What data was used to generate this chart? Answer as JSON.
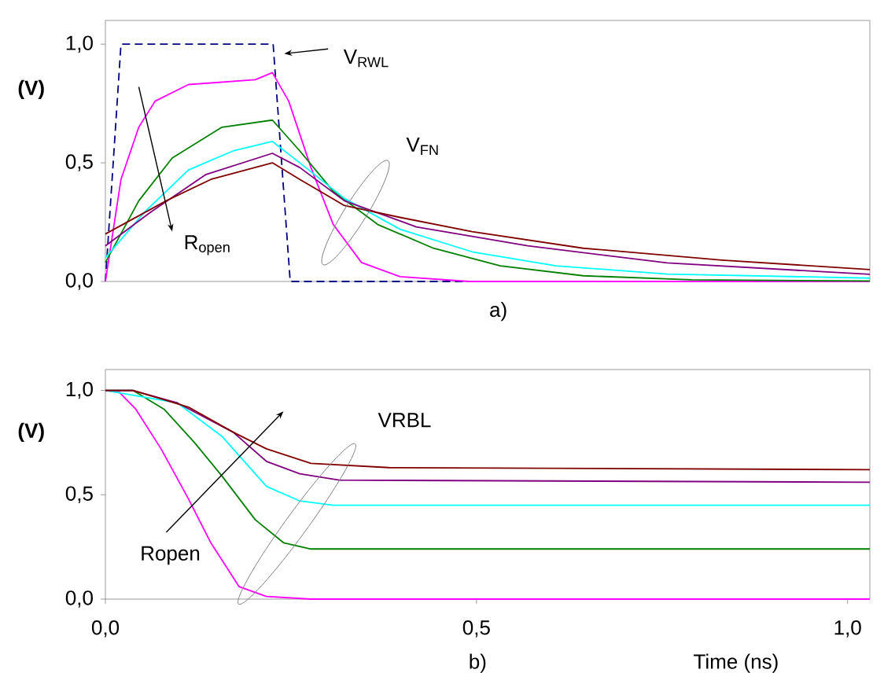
{
  "chart_data": [
    {
      "type": "line",
      "ylabel": "(V)",
      "xlim": [
        0,
        1.03
      ],
      "ylim": [
        0,
        1.1
      ],
      "yticks": [
        {
          "value": 0,
          "label": "0,0"
        },
        {
          "value": 0.5,
          "label": "0,5"
        },
        {
          "value": 1,
          "label": "1,0"
        }
      ],
      "tick_labels": "y",
      "annotations": [
        "V$_{RWL}$",
        "V$_{FN}$",
        "R$_{open}$",
        "a)"
      ],
      "series": [
        {
          "color": "#000080",
          "line_style": "dashed",
          "x": [
            0,
            0.021,
            0.226,
            0.249,
            1.03
          ],
          "values": [
            0,
            1,
            1,
            0,
            0
          ]
        },
        {
          "color": "#ff00ff",
          "x": [
            0,
            0.021,
            0.045,
            0.067,
            0.112,
            0.202,
            0.225,
            0.247,
            0.277,
            0.307,
            0.345,
            0.397,
            0.49,
            1.03
          ],
          "values": [
            0,
            0.43,
            0.65,
            0.76,
            0.83,
            0.85,
            0.88,
            0.76,
            0.48,
            0.24,
            0.08,
            0.02,
            0,
            0
          ]
        },
        {
          "color": "#008000",
          "x": [
            0,
            0.045,
            0.09,
            0.157,
            0.225,
            0.262,
            0.307,
            0.367,
            0.442,
            0.532,
            0.644,
            0.79,
            1.03
          ],
          "values": [
            0.08,
            0.34,
            0.52,
            0.65,
            0.68,
            0.55,
            0.38,
            0.24,
            0.14,
            0.066,
            0.024,
            0.007,
            0.002
          ]
        },
        {
          "color": "#00ffff",
          "x": [
            0,
            0.052,
            0.112,
            0.172,
            0.225,
            0.262,
            0.322,
            0.397,
            0.494,
            0.607,
            0.757,
            1.03
          ],
          "values": [
            0.1,
            0.29,
            0.47,
            0.55,
            0.59,
            0.5,
            0.35,
            0.22,
            0.125,
            0.066,
            0.031,
            0.014
          ]
        },
        {
          "color": "#800080",
          "x": [
            0,
            0.06,
            0.135,
            0.225,
            0.262,
            0.322,
            0.419,
            0.569,
            0.757,
            1.03
          ],
          "values": [
            0.15,
            0.29,
            0.45,
            0.54,
            0.48,
            0.34,
            0.23,
            0.15,
            0.078,
            0.03
          ]
        },
        {
          "color": "#800000",
          "x": [
            0,
            0.082,
            0.142,
            0.225,
            0.262,
            0.322,
            0.397,
            0.494,
            0.644,
            0.831,
            1.03
          ],
          "values": [
            0.2,
            0.34,
            0.43,
            0.5,
            0.43,
            0.32,
            0.27,
            0.21,
            0.14,
            0.09,
            0.05
          ]
        }
      ]
    },
    {
      "type": "line",
      "ylabel": "(V)",
      "xlabel": "Time (ns)",
      "xlim": [
        0,
        1.03
      ],
      "ylim": [
        0,
        1.1
      ],
      "xticks": [
        {
          "value": 0,
          "label": "0,0"
        },
        {
          "value": 0.5,
          "label": "0,5"
        },
        {
          "value": 1,
          "label": "1,0"
        }
      ],
      "yticks": [
        {
          "value": 0,
          "label": "0,0"
        },
        {
          "value": 0.5,
          "label": "0,5"
        },
        {
          "value": 1,
          "label": "1,0"
        }
      ],
      "annotations": [
        "VRBL",
        "Ropen",
        "b)"
      ],
      "series": [
        {
          "color": "#ff00ff",
          "x": [
            0,
            0.019,
            0.041,
            0.075,
            0.112,
            0.142,
            0.18,
            0.217,
            0.277,
            1.03
          ],
          "values": [
            1,
            0.99,
            0.91,
            0.72,
            0.48,
            0.27,
            0.06,
            0.013,
            0,
            0
          ]
        },
        {
          "color": "#008000",
          "x": [
            0,
            0.037,
            0.079,
            0.12,
            0.157,
            0.202,
            0.24,
            0.277,
            1.03
          ],
          "values": [
            1,
            1,
            0.91,
            0.75,
            0.59,
            0.38,
            0.27,
            0.24,
            0.24
          ]
        },
        {
          "color": "#00ffff",
          "x": [
            0,
            0.097,
            0.157,
            0.217,
            0.262,
            0.307,
            1.03
          ],
          "values": [
            1,
            0.94,
            0.78,
            0.54,
            0.47,
            0.45,
            0.45
          ]
        },
        {
          "color": "#800080",
          "x": [
            0,
            0.037,
            0.097,
            0.172,
            0.217,
            0.262,
            0.315,
            1.03
          ],
          "values": [
            1,
            1,
            0.94,
            0.8,
            0.66,
            0.6,
            0.57,
            0.56
          ]
        },
        {
          "color": "#800000",
          "x": [
            0,
            0.037,
            0.112,
            0.172,
            0.217,
            0.277,
            0.382,
            1.03
          ],
          "values": [
            1,
            1,
            0.92,
            0.8,
            0.72,
            0.65,
            0.63,
            0.62
          ]
        }
      ]
    }
  ]
}
